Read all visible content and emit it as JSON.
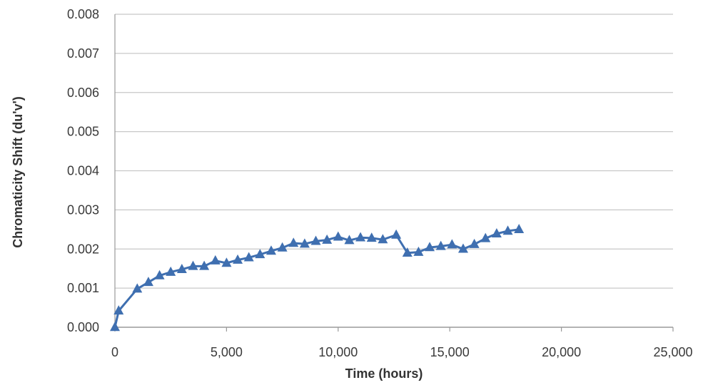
{
  "chart_data": {
    "type": "line",
    "xlabel": "Time (hours)",
    "ylabel": "Chromaticity Shift (du'v')",
    "xlim": [
      0,
      25000
    ],
    "ylim": [
      0,
      0.008
    ],
    "x_ticks": [
      {
        "value": 0,
        "label": "0"
      },
      {
        "value": 5000,
        "label": "5,000"
      },
      {
        "value": 10000,
        "label": "10,000"
      },
      {
        "value": 15000,
        "label": "15,000"
      },
      {
        "value": 20000,
        "label": "20,000"
      },
      {
        "value": 25000,
        "label": "25,000"
      }
    ],
    "y_ticks": [
      {
        "value": 0,
        "label": "0.000"
      },
      {
        "value": 0.001,
        "label": "0.001"
      },
      {
        "value": 0.002,
        "label": "0.002"
      },
      {
        "value": 0.003,
        "label": "0.003"
      },
      {
        "value": 0.004,
        "label": "0.004"
      },
      {
        "value": 0.005,
        "label": "0.005"
      },
      {
        "value": 0.006,
        "label": "0.006"
      },
      {
        "value": 0.007,
        "label": "0.007"
      },
      {
        "value": 0.008,
        "label": "0.008"
      }
    ],
    "grid": "horizontal",
    "legend": "none",
    "series": [
      {
        "marker": "triangle",
        "color": "#3f6fb0",
        "x": [
          0,
          168,
          1000,
          1500,
          2000,
          2500,
          3000,
          3500,
          4000,
          4500,
          5000,
          5500,
          6000,
          6500,
          7000,
          7500,
          8000,
          8500,
          9000,
          9500,
          10000,
          10500,
          11000,
          11500,
          12000,
          12600,
          13100,
          13600,
          14100,
          14600,
          15100,
          15600,
          16100,
          16600,
          17100,
          17600,
          18100
        ],
        "y": [
          0.0,
          0.00042,
          0.00098,
          0.00115,
          0.00132,
          0.00141,
          0.00148,
          0.00156,
          0.00156,
          0.0017,
          0.00164,
          0.00172,
          0.00178,
          0.00186,
          0.00195,
          0.00203,
          0.00215,
          0.00213,
          0.0022,
          0.00223,
          0.00231,
          0.00222,
          0.00229,
          0.00228,
          0.00224,
          0.00236,
          0.0019,
          0.00192,
          0.00204,
          0.00207,
          0.00211,
          0.002,
          0.00212,
          0.00227,
          0.00239,
          0.00246,
          0.0025
        ]
      }
    ]
  },
  "colors": {
    "series": "#3f6fb0",
    "grid": "#c8c8c8",
    "axis": "#9a9a9a"
  }
}
